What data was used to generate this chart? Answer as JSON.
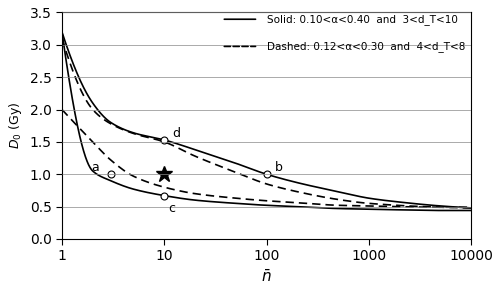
{
  "title": "",
  "xlabel": "$\\bar{n}$",
  "ylabel": "$D_0$ (Gy)",
  "xlim": [
    1,
    10000
  ],
  "ylim": [
    0,
    3.5
  ],
  "yticks": [
    0,
    0.5,
    1.0,
    1.5,
    2.0,
    2.5,
    3.0,
    3.5
  ],
  "legend_solid_text": "Solid: 0.10<α<0.40  and  3<d_T<10",
  "legend_dashed_text": "Dashed: 0.12<α<0.30  and  4<d_T<8",
  "point_a": [
    3,
    1.0
  ],
  "point_b": [
    100,
    1.0
  ],
  "point_c": [
    10,
    0.67
  ],
  "point_d": [
    10,
    1.53
  ],
  "star_x": 10,
  "star_y": 1.0,
  "solid_upper_alpha": 0.1,
  "solid_upper_dT": 10,
  "solid_lower_alpha": 0.4,
  "solid_lower_dT": 3,
  "dashed_upper_alpha": 0.12,
  "dashed_upper_dT": 8,
  "dashed_lower_alpha": 0.3,
  "dashed_lower_dT": 4,
  "line_color": "#000000",
  "background_color": "#ffffff"
}
